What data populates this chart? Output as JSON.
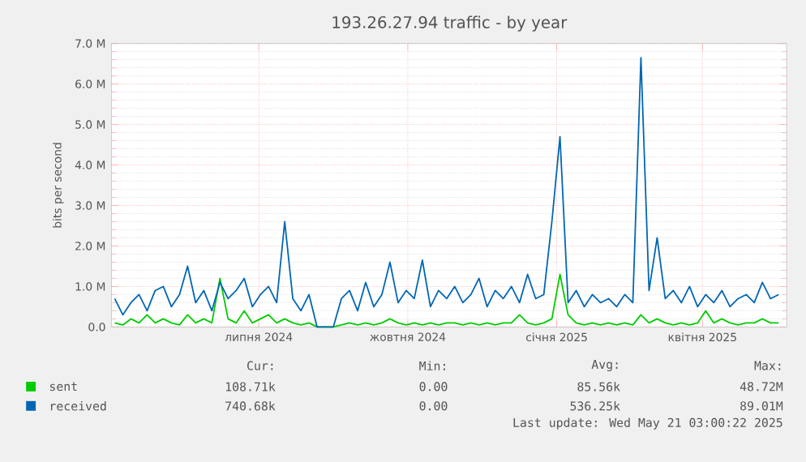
{
  "chart_data": {
    "type": "line",
    "title": "193.26.27.94 traffic - by year",
    "ylabel": "bits per second",
    "x": [
      "2024-04-03",
      "2024-04-08",
      "2024-04-13",
      "2024-04-18",
      "2024-04-23",
      "2024-04-28",
      "2024-05-03",
      "2024-05-08",
      "2024-05-13",
      "2024-05-18",
      "2024-05-23",
      "2024-05-28",
      "2024-06-02",
      "2024-06-07",
      "2024-06-12",
      "2024-06-17",
      "2024-06-22",
      "2024-06-27",
      "2024-07-02",
      "2024-07-07",
      "2024-07-12",
      "2024-07-17",
      "2024-07-22",
      "2024-07-27",
      "2024-08-01",
      "2024-08-06",
      "2024-08-11",
      "2024-08-16",
      "2024-08-21",
      "2024-08-26",
      "2024-08-31",
      "2024-09-05",
      "2024-09-10",
      "2024-09-15",
      "2024-09-20",
      "2024-09-25",
      "2024-09-30",
      "2024-10-05",
      "2024-10-10",
      "2024-10-15",
      "2024-10-20",
      "2024-10-25",
      "2024-10-30",
      "2024-11-04",
      "2024-11-09",
      "2024-11-14",
      "2024-11-19",
      "2024-11-24",
      "2024-11-29",
      "2024-12-04",
      "2024-12-09",
      "2024-12-14",
      "2024-12-19",
      "2024-12-24",
      "2024-12-29",
      "2025-01-03",
      "2025-01-08",
      "2025-01-13",
      "2025-01-18",
      "2025-01-23",
      "2025-01-28",
      "2025-02-02",
      "2025-02-07",
      "2025-02-12",
      "2025-02-17",
      "2025-02-22",
      "2025-02-27",
      "2025-03-04",
      "2025-03-09",
      "2025-03-14",
      "2025-03-19",
      "2025-03-24",
      "2025-03-29",
      "2025-04-03",
      "2025-04-08",
      "2025-04-13",
      "2025-04-18",
      "2025-04-23",
      "2025-04-28",
      "2025-05-03",
      "2025-05-08",
      "2025-05-13",
      "2025-05-18"
    ],
    "series": [
      {
        "name": "sent",
        "color": "#00cc00",
        "values": [
          0.1,
          0.05,
          0.2,
          0.1,
          0.3,
          0.1,
          0.2,
          0.1,
          0.05,
          0.3,
          0.1,
          0.2,
          0.1,
          1.2,
          0.2,
          0.1,
          0.4,
          0.1,
          0.2,
          0.3,
          0.1,
          0.2,
          0.1,
          0.05,
          0.1,
          0,
          0,
          0,
          0.05,
          0.1,
          0.05,
          0.1,
          0.05,
          0.1,
          0.2,
          0.1,
          0.05,
          0.1,
          0.05,
          0.1,
          0.05,
          0.1,
          0.1,
          0.05,
          0.1,
          0.05,
          0.1,
          0.05,
          0.1,
          0.1,
          0.3,
          0.1,
          0.05,
          0.1,
          0.2,
          1.3,
          0.3,
          0.1,
          0.05,
          0.1,
          0.05,
          0.1,
          0.05,
          0.1,
          0.05,
          0.3,
          0.1,
          0.2,
          0.1,
          0.05,
          0.1,
          0.05,
          0.1,
          0.4,
          0.1,
          0.2,
          0.1,
          0.05,
          0.1,
          0.1,
          0.2,
          0.1,
          0.1
        ]
      },
      {
        "name": "received",
        "color": "#0066b3",
        "values": [
          0.7,
          0.3,
          0.6,
          0.8,
          0.4,
          0.9,
          1.0,
          0.5,
          0.8,
          1.5,
          0.6,
          0.9,
          0.4,
          1.1,
          0.7,
          0.9,
          1.2,
          0.5,
          0.8,
          1.0,
          0.6,
          2.6,
          0.7,
          0.4,
          0.8,
          0,
          0,
          0,
          0.7,
          0.9,
          0.4,
          1.1,
          0.5,
          0.8,
          1.6,
          0.6,
          0.9,
          0.7,
          1.65,
          0.5,
          0.9,
          0.7,
          1.0,
          0.6,
          0.8,
          1.2,
          0.5,
          0.9,
          0.7,
          1.0,
          0.6,
          1.3,
          0.7,
          0.8,
          2.6,
          4.7,
          0.6,
          0.9,
          0.5,
          0.8,
          0.6,
          0.7,
          0.5,
          0.8,
          0.6,
          6.65,
          0.9,
          2.2,
          0.7,
          0.9,
          0.6,
          1.0,
          0.5,
          0.8,
          0.6,
          0.9,
          0.5,
          0.7,
          0.8,
          0.6,
          1.1,
          0.7,
          0.8
        ]
      }
    ],
    "xlim": [
      "2024-04-01",
      "2025-05-23"
    ],
    "xticks": [
      {
        "value": "2024-07-01",
        "label": "липня 2024"
      },
      {
        "value": "2024-10-01",
        "label": "жовтня 2024"
      },
      {
        "value": "2025-01-01",
        "label": "січня 2025"
      },
      {
        "value": "2025-04-01",
        "label": "квітня 2025"
      }
    ],
    "ylim": [
      0,
      7
    ],
    "yticks": [
      {
        "value": 0,
        "label": "0.0"
      },
      {
        "value": 1,
        "label": "1.0 M"
      },
      {
        "value": 2,
        "label": "2.0 M"
      },
      {
        "value": 3,
        "label": "3.0 M"
      },
      {
        "value": 4,
        "label": "4.0 M"
      },
      {
        "value": 5,
        "label": "5.0 M"
      },
      {
        "value": 6,
        "label": "6.0 M"
      },
      {
        "value": 7,
        "label": "7.0 M"
      }
    ],
    "grid": true,
    "legend": "bottom left",
    "marker": "none",
    "line_style": "solid",
    "annotations": [
      "Cur:",
      "Min:",
      "Avg:",
      "Max:",
      "108.71k",
      "0.00",
      "85.56k",
      "48.72M",
      "740.68k",
      "0.00",
      "536.25k",
      "89.01M",
      "Last update: Wed May 21 03:00:22 2025"
    ]
  }
}
